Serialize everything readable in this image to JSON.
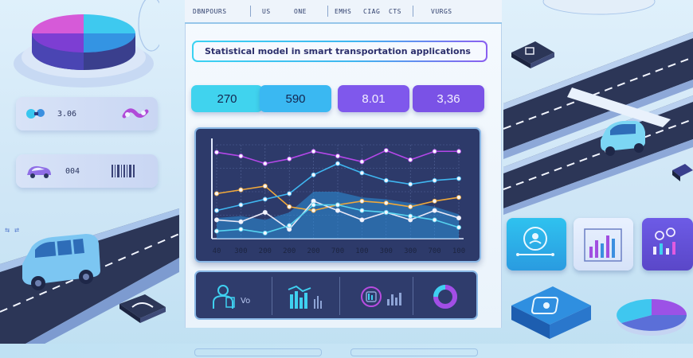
{
  "nav": {
    "items": [
      "DBNPOURS",
      "US",
      "ONE",
      "EMHS",
      "CIAG",
      "CTS",
      "VURGS"
    ]
  },
  "title": "Statistical model in smart transportation applications",
  "metrics": [
    {
      "value": "270",
      "color": "#40d3ee"
    },
    {
      "value": "590",
      "color": "#3ab8f2"
    },
    {
      "value": "8.01",
      "color": "#7f58ec"
    },
    {
      "value": "3,36",
      "color": "#7a52e6"
    }
  ],
  "side_stats": [
    {
      "value": "3.06",
      "icon": "link-icon"
    },
    {
      "value": "004",
      "icon": "car-icon"
    }
  ],
  "chart_data": {
    "type": "line",
    "categories": [
      "40",
      "300",
      "200",
      "200",
      "200",
      "700",
      "100",
      "300",
      "300",
      "700",
      "100"
    ],
    "series": [
      {
        "color": "#b347e8",
        "values": [
          92,
          88,
          80,
          85,
          93,
          88,
          82,
          94,
          84,
          93,
          93
        ]
      },
      {
        "color": "#f0a83a",
        "values": [
          48,
          52,
          56,
          34,
          30,
          36,
          40,
          38,
          34,
          40,
          44
        ]
      },
      {
        "color": "#3fb6f0",
        "values": [
          30,
          36,
          42,
          48,
          68,
          80,
          70,
          62,
          58,
          62,
          64
        ]
      },
      {
        "color": "#e8e8f6",
        "values": [
          20,
          18,
          28,
          10,
          40,
          30,
          20,
          28,
          20,
          30,
          22
        ]
      },
      {
        "color": "#56d3ef",
        "values": [
          8,
          10,
          6,
          14,
          36,
          36,
          30,
          28,
          24,
          20,
          12
        ]
      }
    ],
    "ylim": [
      0,
      100
    ]
  },
  "strip": {
    "item1_label": "Vo",
    "item1_icon": "person-icon",
    "item2_icon": "bar-chart-icon",
    "item3_icon": "stats-icon",
    "item4_icon": "donut-icon"
  },
  "colors": {
    "accent_cyan": "#3bd2f2",
    "accent_purple": "#8a5ff0",
    "panel_dark": "#2d3a6a"
  }
}
